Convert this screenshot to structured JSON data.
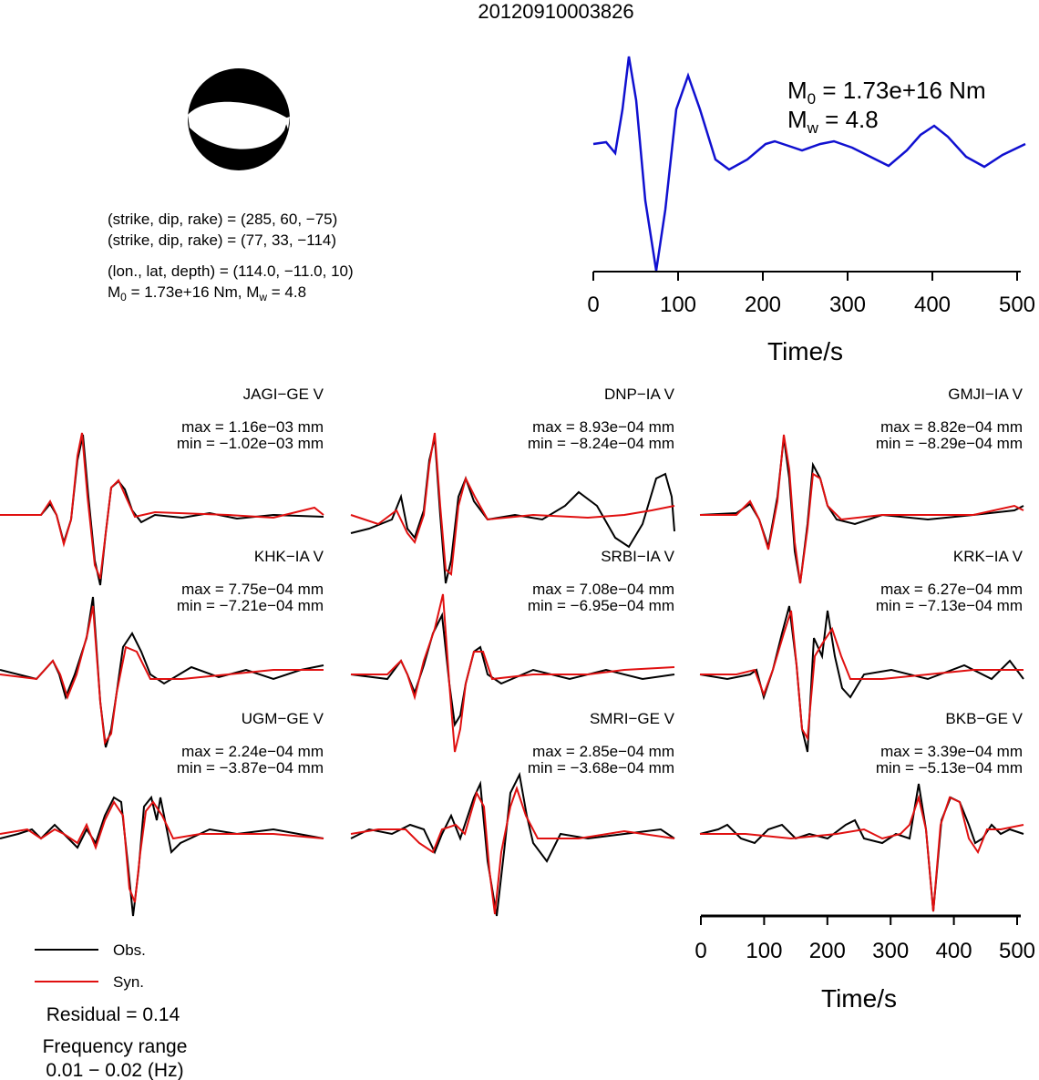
{
  "title": "20120910003826",
  "mechanism": {
    "planes": [
      "(strike, dip, rake) = (285, 60, −75)",
      "(strike, dip, rake) = (77, 33, −114)"
    ],
    "location": "(lon., lat, depth) = (114.0, −11.0, 10)",
    "moment": [
      "M",
      "0",
      " = 1.73e+16 Nm, M",
      "w",
      " = 4.8"
    ]
  },
  "source_time_function": {
    "moment": [
      "M",
      "0",
      " = 1.73e+16 Nm"
    ],
    "magnitude": [
      "M",
      "w",
      " = 4.8"
    ],
    "xlim": [
      0,
      500
    ],
    "xticks": [
      0,
      100,
      200,
      300,
      400,
      500
    ],
    "xlabel": "Time/s"
  },
  "stations": [
    {
      "name": "JAGI−GE V",
      "max": "max = 1.16e−03 mm",
      "min": "min = −1.02e−03 mm"
    },
    {
      "name": "DNP−IA V",
      "max": "max = 8.93e−04 mm",
      "min": "min = −8.24e−04 mm"
    },
    {
      "name": "GMJI−IA V",
      "max": "max = 8.82e−04 mm",
      "min": "min = −8.29e−04 mm"
    },
    {
      "name": "KHK−IA V",
      "max": "max = 7.75e−04 mm",
      "min": "min = −7.21e−04 mm"
    },
    {
      "name": "SRBI−IA V",
      "max": "max = 7.08e−04 mm",
      "min": "min = −6.95e−04 mm"
    },
    {
      "name": "KRK−IA V",
      "max": "max = 6.27e−04 mm",
      "min": "min = −7.13e−04 mm"
    },
    {
      "name": "UGM−GE V",
      "max": "max = 2.24e−04 mm",
      "min": "min = −3.87e−04 mm"
    },
    {
      "name": "SMRI−GE V",
      "max": "max = 2.85e−04 mm",
      "min": "min = −3.68e−04 mm"
    },
    {
      "name": "BKB−GE V",
      "max": "max = 3.39e−04 mm",
      "min": "min = −5.13e−04 mm"
    }
  ],
  "waveform_axis": {
    "xlim": [
      0,
      500
    ],
    "xticks": [
      0,
      100,
      200,
      300,
      400,
      500
    ],
    "xlabel": "Time/s"
  },
  "legend": [
    "Obs.",
    "Syn."
  ],
  "residual": "Residual = 0.14",
  "frequency": [
    "Frequency range",
    "0.01 − 0.02 (Hz)"
  ]
}
